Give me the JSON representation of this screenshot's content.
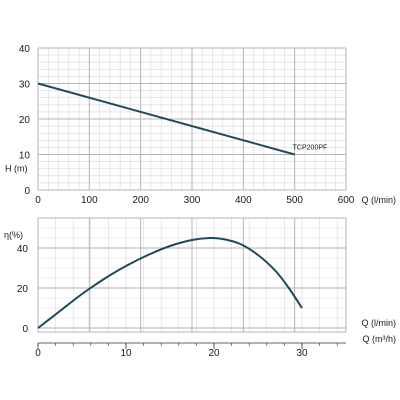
{
  "chart_data": [
    {
      "type": "line",
      "xlabel": "Q  (l/min)",
      "ylabel": "H (m)",
      "xlim": [
        0,
        600
      ],
      "ylim": [
        0,
        40
      ],
      "x_ticks": [
        0,
        100,
        200,
        300,
        400,
        500,
        600
      ],
      "y_ticks": [
        0,
        10,
        20,
        30,
        40
      ],
      "grid": true,
      "colors": {
        "line": "#1d4a5c",
        "grid_major": "#b3b3b3",
        "grid_minor": "#d9d9d9",
        "text": "#1a1a1a"
      },
      "series": [
        {
          "name": "TCP200PF",
          "points": [
            [
              0,
              30
            ],
            [
              500,
              10
            ]
          ]
        }
      ]
    },
    {
      "type": "line",
      "ylabel": "η(%)",
      "xlabel_top": "Q  (l/min)",
      "xlabel": "Q  (m³/h)",
      "xlim": [
        0,
        35
      ],
      "ylim": [
        -2,
        55
      ],
      "x_ticks": [
        0,
        10,
        20,
        30
      ],
      "y_ticks": [
        0,
        20,
        40
      ],
      "grid": true,
      "colors": {
        "line": "#1d4a5c"
      },
      "series": [
        {
          "points": [
            [
              0,
              0
            ],
            [
              2.5,
              8.5
            ],
            [
              5,
              17
            ],
            [
              7.5,
              24.5
            ],
            [
              10,
              31
            ],
            [
              12.5,
              36.5
            ],
            [
              15,
              41
            ],
            [
              17.5,
              44
            ],
            [
              19.5,
              45
            ],
            [
              21,
              44.5
            ],
            [
              23,
              42
            ],
            [
              25,
              36.5
            ],
            [
              27,
              28.5
            ],
            [
              28.5,
              20
            ],
            [
              30,
              10
            ]
          ]
        }
      ]
    }
  ]
}
